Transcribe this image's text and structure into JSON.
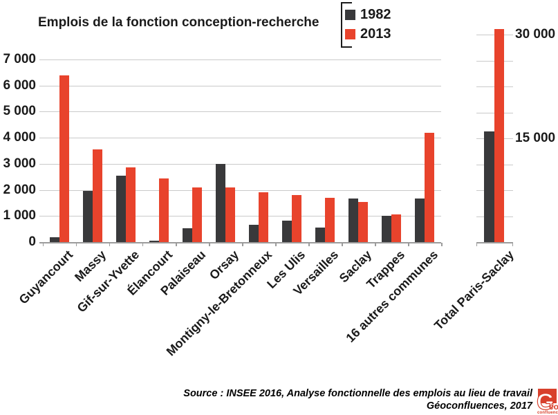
{
  "title": "Emplois de la fonction conception-recherche",
  "legend": {
    "items": [
      {
        "label": "1982",
        "color": "#39393B"
      },
      {
        "label": "2013",
        "color": "#E8432C"
      }
    ]
  },
  "chart_data": {
    "type": "bar",
    "title": "Emplois de la fonction conception-recherche",
    "categories": [
      "Guyancourt",
      "Massy",
      "Gif-sur-Yvette",
      "Élancourt",
      "Palaiseau",
      "Orsay",
      "Montigny-le-Bretonneux",
      "Les Ulis",
      "Versailles",
      "Saclay",
      "Trappes",
      "16 autres communes"
    ],
    "series": [
      {
        "name": "1982",
        "color": "#39393B",
        "values": [
          180,
          1950,
          2550,
          50,
          520,
          3000,
          650,
          830,
          550,
          1680,
          1000,
          1680
        ]
      },
      {
        "name": "2013",
        "color": "#E8432C",
        "values": [
          6400,
          3550,
          2870,
          2450,
          2100,
          2100,
          1900,
          1800,
          1700,
          1550,
          1050,
          4200
        ]
      }
    ],
    "xlabel": "",
    "ylabel": "",
    "ylim": [
      0,
      7000
    ],
    "ytick_interval": 1000,
    "ytick_labels": [
      "0",
      "1 000",
      "2 000",
      "3 000",
      "4 000",
      "5 000",
      "6 000",
      "7 000"
    ],
    "grid": true,
    "legend_position": "top",
    "total_panel": {
      "category": "Total Paris-Saclay",
      "series": [
        {
          "name": "1982",
          "color": "#39393B",
          "value": 16000
        },
        {
          "name": "2013",
          "color": "#E8432C",
          "value": 30800
        }
      ],
      "ylim": [
        0,
        33750
      ],
      "ytick_interval": 3750,
      "labeled_ticks": [
        {
          "value": 15000,
          "label": "15 000"
        },
        {
          "value": 30000,
          "label": "30 000"
        }
      ]
    }
  },
  "source": {
    "line1": "Source : INSEE 2016, Analyse fonctionnelle des emplois au lieu de travail",
    "line2": "Géoconfluences, 2017"
  },
  "logo": {
    "g": "G",
    "eo": "éo",
    "sub": "confluences"
  }
}
